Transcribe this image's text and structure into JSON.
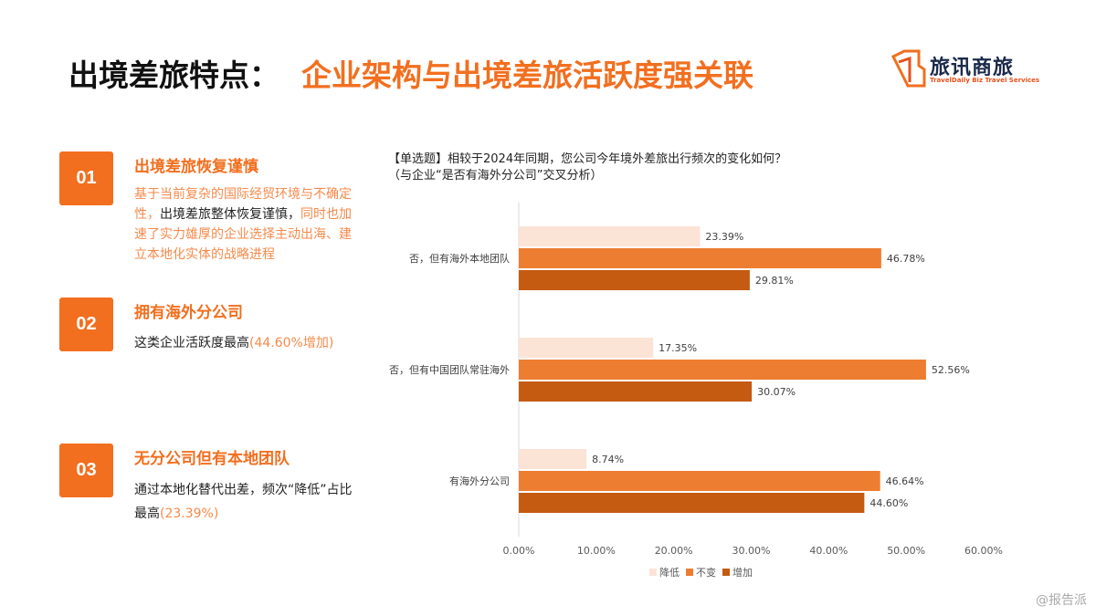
{
  "header": {
    "title_black": "出境差旅特点：",
    "title_orange": "企业架构与出境差旅活跃度强关联"
  },
  "logo": {
    "name_cn": "旅讯商旅",
    "name_en": "TravelDaily Biz Travel Services"
  },
  "points": [
    {
      "num": "01",
      "title": "出境差旅恢复谨慎",
      "text_parts": [
        "基于当前复杂的国际经贸环境与不确定性，",
        "出境差旅整体恢复谨慎，",
        "同时也加速了实力雄厚的企业选择主动出海、建立本地化实体的战略进程"
      ]
    },
    {
      "num": "02",
      "title": "拥有海外分公司",
      "text_parts": [
        "这类企业活跃度最高",
        "(44.60%增加)"
      ]
    },
    {
      "num": "03",
      "title": "无分公司但有本地团队",
      "text_parts": [
        "通过本地化替代出差，频次“降低”占比最高",
        "(23.39%)"
      ]
    }
  ],
  "question": {
    "line1": "【单选题】相较于2024年同期，您公司今年境外差旅出行频次的变化如何？",
    "line2": "（与企业“是否有海外分公司”交叉分析）"
  },
  "chart_data": {
    "type": "bar",
    "orientation": "horizontal",
    "categories": [
      "否，但有海外本地团队",
      "否，但有中国团队常驻海外",
      "有海外分公司"
    ],
    "series": [
      {
        "name": "降低",
        "color": "#fbe3d6",
        "values": [
          23.39,
          17.35,
          8.74
        ]
      },
      {
        "name": "不变",
        "color": "#ed7d31",
        "values": [
          46.78,
          52.56,
          46.64
        ]
      },
      {
        "name": "增加",
        "color": "#c55a11",
        "values": [
          29.81,
          30.07,
          44.6
        ]
      }
    ],
    "xlim": [
      0,
      60
    ],
    "xticks": [
      "0.00%",
      "10.00%",
      "20.00%",
      "30.00%",
      "40.00%",
      "50.00%",
      "60.00%"
    ],
    "legend": "bottom"
  },
  "watermark": "@报告派"
}
